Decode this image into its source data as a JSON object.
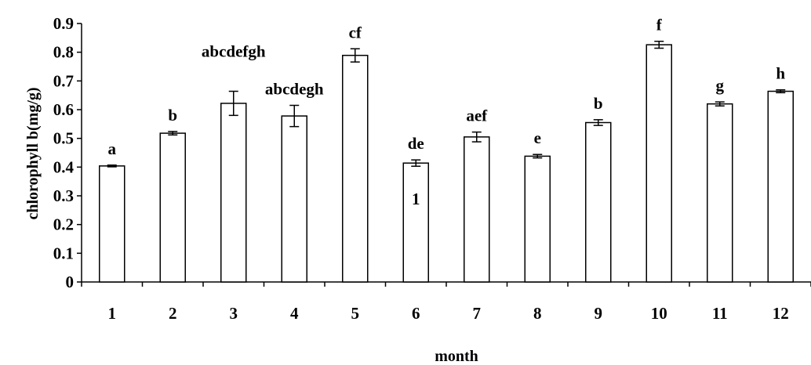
{
  "chart_data": {
    "type": "bar",
    "title": "",
    "xlabel": "month",
    "ylabel": "chlorophyll b(mg/g)",
    "ylim": [
      0,
      0.9
    ],
    "yticks": [
      "0",
      "0.1",
      "0.2",
      "0.3",
      "0.4",
      "0.5",
      "0.6",
      "0.7",
      "0.8",
      "0.9"
    ],
    "categories": [
      "1",
      "2",
      "3",
      "4",
      "5",
      "6",
      "7",
      "8",
      "9",
      "10",
      "11",
      "12"
    ],
    "values": [
      0.404,
      0.518,
      0.622,
      0.578,
      0.789,
      0.414,
      0.505,
      0.438,
      0.555,
      0.826,
      0.62,
      0.664
    ],
    "errors": [
      0.003,
      0.006,
      0.042,
      0.037,
      0.023,
      0.011,
      0.017,
      0.006,
      0.01,
      0.012,
      0.007,
      0.005
    ],
    "significance_labels": [
      "a",
      "b",
      "abcdefgh",
      "abcdegh",
      "cf",
      "de",
      "aef",
      "e",
      "b",
      "f",
      "g",
      "h"
    ],
    "annotations": [
      {
        "text": "1",
        "category": "6",
        "y": 0.27
      }
    ],
    "grid": false,
    "legend": "none",
    "bar_fill": "#ffffff",
    "bar_stroke": "#000000"
  }
}
